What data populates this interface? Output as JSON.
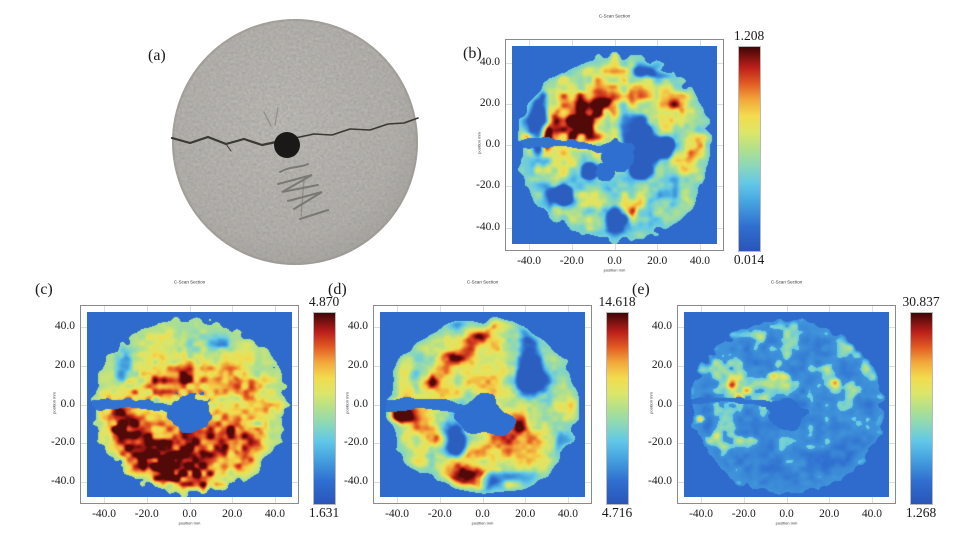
{
  "figure": {
    "background": "#ffffff",
    "panels": {
      "a": {
        "label": "(a)",
        "type": "photograph",
        "subject": "grey circular concrete disc specimen with a horizontal crack running through a black central hole and pencil markings below the hole"
      },
      "b": {
        "label": "(b)"
      },
      "c": {
        "label": "(c)"
      },
      "d": {
        "label": "(d)"
      },
      "e": {
        "label": "(e)"
      }
    },
    "colors": {
      "heat_background": "#2c5fc1",
      "disc_gray": "#b3b1ac",
      "hole_black": "#1a1917",
      "crack": "#3a3833",
      "frame": "#8a8a8a",
      "grid": "#dcdcdc",
      "text": "#1a1a1a"
    },
    "colormap": [
      {
        "t": 0.0,
        "color": "#2a55b8"
      },
      {
        "t": 0.12,
        "color": "#2f6fd0"
      },
      {
        "t": 0.25,
        "color": "#49a8e0"
      },
      {
        "t": 0.33,
        "color": "#62c8e8"
      },
      {
        "t": 0.42,
        "color": "#8cd8b8"
      },
      {
        "t": 0.5,
        "color": "#b2e08c"
      },
      {
        "t": 0.58,
        "color": "#dce668"
      },
      {
        "t": 0.66,
        "color": "#f2dc4e"
      },
      {
        "t": 0.74,
        "color": "#f2a93c"
      },
      {
        "t": 0.82,
        "color": "#e25c24"
      },
      {
        "t": 0.9,
        "color": "#bc1f1a"
      },
      {
        "t": 1.0,
        "color": "#3f0606"
      }
    ]
  },
  "chart_data": [
    {
      "panel": "b",
      "type": "heatmap",
      "title": "C-Scan Section",
      "xlabel": "position mm",
      "ylabel": "position mm",
      "x_ticks": [
        -40,
        -20,
        0,
        20,
        40
      ],
      "x_tick_labels": [
        "-40.0",
        "-20.0",
        "0.0",
        "20.0",
        "40.0"
      ],
      "y_ticks": [
        40,
        20,
        0,
        -20,
        -40
      ],
      "y_tick_labels": [
        "40.0",
        "20.0",
        "0.0",
        "-20.0",
        "-40.0"
      ],
      "xlim": [
        -48,
        48
      ],
      "ylim": [
        -48,
        48
      ],
      "colorbar": {
        "min": 0.014,
        "max": 1.208,
        "min_label": "0.014",
        "max_label": "1.208"
      },
      "description": "speckled green/cyan disc with scattered red-orange patches, strongest along an upper-left band; dark blue crack line runs from the left edge to the blue central hole; uniform royal-blue background",
      "render": {
        "seed": 11,
        "scale": 8,
        "fineScale": 24,
        "base": 0.46,
        "amp": 0.26,
        "fine": 0.16,
        "gy": 0.0015,
        "lowCut": 0.33,
        "edgeW": 5,
        "edgeT": 0.38,
        "bg": 0.1,
        "hot": [
          {
            "x": -18,
            "y": 13,
            "r": 16,
            "a": 0.4
          },
          {
            "x": -33,
            "y": 3,
            "r": 9,
            "a": 0.45
          },
          {
            "x": -4,
            "y": 21,
            "r": 10,
            "a": 0.35
          },
          {
            "x": 10,
            "y": -33,
            "r": 8,
            "a": 0.28
          },
          {
            "x": 31,
            "y": -6,
            "r": 7,
            "a": 0.22
          },
          {
            "x": 25,
            "y": 20,
            "r": 7,
            "a": 0.2
          }
        ],
        "crack": {
          "y": -0.5,
          "w": 2.2,
          "x2": 2
        },
        "holes": [
          {
            "x": 2,
            "y": -6,
            "r": 8
          },
          {
            "x": -4,
            "y": -13,
            "r": 5
          }
        ]
      }
    },
    {
      "panel": "c",
      "type": "heatmap",
      "title": "C-Scan Section",
      "xlabel": "position mm",
      "ylabel": "position mm",
      "x_ticks": [
        -40,
        -20,
        0,
        20,
        40
      ],
      "x_tick_labels": [
        "-40.0",
        "-20.0",
        "0.0",
        "20.0",
        "40.0"
      ],
      "y_ticks": [
        40,
        20,
        0,
        -20,
        -40
      ],
      "y_tick_labels": [
        "40.0",
        "20.0",
        "0.0",
        "-20.0",
        "-40.0"
      ],
      "xlim": [
        -48,
        48
      ],
      "ylim": [
        -48,
        48
      ],
      "colorbar": {
        "min": 1.631,
        "max": 4.87,
        "min_label": "1.631",
        "max_label": "4.870"
      },
      "description": "mostly yellow disc with dense red patches concentrated in the lower half; blue crack line at left mid-height and a square-ish blue central hole; royal-blue background",
      "render": {
        "seed": 23,
        "scale": 6,
        "fineScale": 30,
        "base": 0.63,
        "amp": 0.18,
        "fine": 0.1,
        "gy": -0.0022,
        "lowCut": 0.18,
        "edgeW": 9,
        "edgeT": 0.48,
        "bg": 0.1,
        "hot": [
          {
            "x": -8,
            "y": -28,
            "r": 22,
            "a": 0.3
          },
          {
            "x": -30,
            "y": -9,
            "r": 13,
            "a": 0.3
          },
          {
            "x": 22,
            "y": -18,
            "r": 15,
            "a": 0.26
          },
          {
            "x": -17,
            "y": 10,
            "r": 13,
            "a": 0.24
          },
          {
            "x": -1,
            "y": 15,
            "r": 9,
            "a": 0.26
          },
          {
            "x": 29,
            "y": 9,
            "r": 9,
            "a": 0.18
          },
          {
            "x": 8,
            "y": -42,
            "r": 10,
            "a": 0.25
          }
        ],
        "crack": {
          "y": -1,
          "w": 2.6,
          "x2": 1
        },
        "holes": [
          {
            "x": 0,
            "y": -4,
            "r": 10
          }
        ]
      }
    },
    {
      "panel": "d",
      "type": "heatmap",
      "title": "C-Scan Section",
      "xlabel": "position mm",
      "ylabel": "position mm",
      "x_ticks": [
        -40,
        -20,
        0,
        20,
        40
      ],
      "x_tick_labels": [
        "-40.0",
        "-20.0",
        "0.0",
        "20.0",
        "40.0"
      ],
      "y_ticks": [
        40,
        20,
        0,
        -20,
        -40
      ],
      "y_tick_labels": [
        "40.0",
        "20.0",
        "0.0",
        "-20.0",
        "-40.0"
      ],
      "xlim": [
        -48,
        48
      ],
      "ylim": [
        -48,
        48
      ],
      "colorbar": {
        "min": 4.716,
        "max": 14.618,
        "min_label": "4.716",
        "max_label": "14.618"
      },
      "description": "cyan-green disc with bold red-orange blobs throughout and many small blue voids; wide blue crack from the left edge merging into an enlarged central blue hole region",
      "render": {
        "seed": 37,
        "scale": 5.5,
        "fineScale": 16,
        "base": 0.52,
        "amp": 0.3,
        "fine": 0.12,
        "gy": -0.001,
        "lowCut": 0.36,
        "edgeW": 5,
        "edgeT": 0.4,
        "bg": 0.1,
        "hot": [
          {
            "x": -38,
            "y": -6,
            "r": 9,
            "a": 0.5
          },
          {
            "x": -24,
            "y": 11,
            "r": 11,
            "a": 0.4
          },
          {
            "x": -8,
            "y": -34,
            "r": 11,
            "a": 0.45
          },
          {
            "x": 12,
            "y": -41,
            "r": 10,
            "a": 0.4
          },
          {
            "x": 15,
            "y": -12,
            "r": 9,
            "a": 0.32
          },
          {
            "x": -13,
            "y": 27,
            "r": 9,
            "a": 0.35
          },
          {
            "x": 34,
            "y": -20,
            "r": 8,
            "a": 0.3
          },
          {
            "x": -21,
            "y": -19,
            "r": 9,
            "a": 0.33
          },
          {
            "x": -4,
            "y": 34,
            "r": 8,
            "a": 0.3
          }
        ],
        "crack": {
          "y": -1,
          "w": 3.0,
          "x2": 4
        },
        "holes": [
          {
            "x": -1,
            "y": -5,
            "r": 11
          },
          {
            "x": 9,
            "y": -10,
            "r": 6
          }
        ]
      }
    },
    {
      "panel": "e",
      "type": "heatmap",
      "title": "C-Scan Section",
      "xlabel": "position mm",
      "ylabel": "position mm",
      "x_ticks": [
        -40,
        -20,
        0,
        20,
        40
      ],
      "x_tick_labels": [
        "-40.0",
        "-20.0",
        "0.0",
        "20.0",
        "40.0"
      ],
      "y_ticks": [
        40,
        20,
        0,
        -20,
        -40
      ],
      "y_tick_labels": [
        "40.0",
        "20.0",
        "0.0",
        "-20.0",
        "-40.0"
      ],
      "xlim": [
        -48,
        48
      ],
      "ylim": [
        -48,
        48
      ],
      "colorbar": {
        "min": 1.268,
        "max": 30.837,
        "min_label": "1.268",
        "max_label": "30.837"
      },
      "description": "mostly blue disc with fine cyan-green speckles and a few small red-orange hot spots in the upper-left quadrant; faint crack line and darker central hole region",
      "render": {
        "seed": 53,
        "scale": 10,
        "fineScale": 26,
        "base": 0.27,
        "amp": 0.17,
        "fine": 0.14,
        "gy": 0.0012,
        "lowCut": 0,
        "edgeW": 4,
        "edgeT": 0.2,
        "bg": 0.1,
        "floor": {
          "cut": 0.33,
          "val": 0.17
        },
        "hot": [
          {
            "x": -24,
            "y": 8,
            "r": 8,
            "a": 0.4
          },
          {
            "x": -5,
            "y": 17,
            "r": 5,
            "a": 0.55
          },
          {
            "x": -41,
            "y": -7,
            "r": 5,
            "a": 0.4
          },
          {
            "x": -12,
            "y": 34,
            "r": 4,
            "a": 0.35
          },
          {
            "x": 23,
            "y": 12,
            "r": 4,
            "a": 0.25
          },
          {
            "x": -33,
            "y": -18,
            "r": 4,
            "a": 0.3
          }
        ],
        "crack": {
          "y": 1,
          "w": 1.5,
          "x2": 0
        },
        "holes": [
          {
            "x": 0,
            "y": -5,
            "r": 9
          }
        ]
      }
    }
  ]
}
